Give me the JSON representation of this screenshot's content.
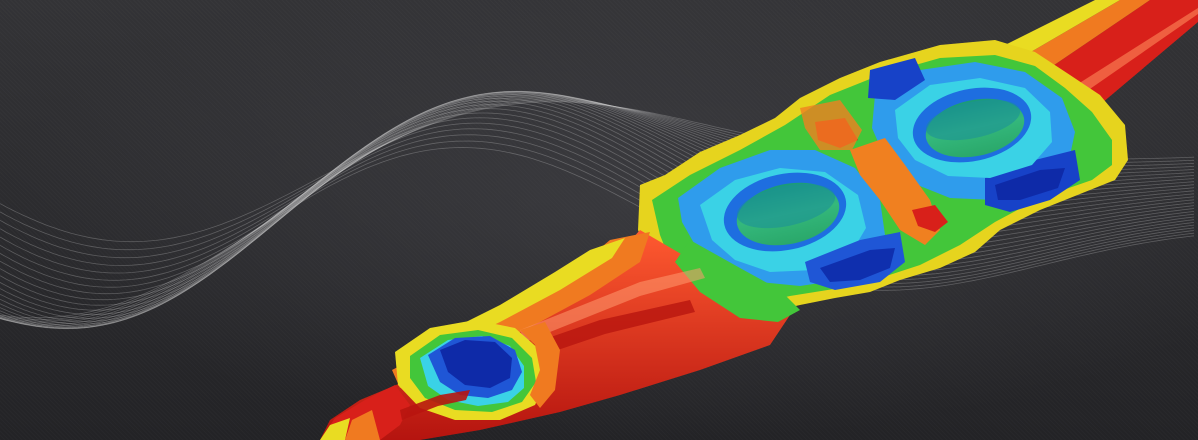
{
  "image": {
    "subject": "fea-stress-contour-bracket",
    "palette": {
      "background": "#2b2b2e",
      "wave_lines": "#d8d8d8",
      "red": "#e0201a",
      "orange": "#f27a1c",
      "yellow": "#e8e01e",
      "green": "#3fc93a",
      "cyan": "#34d6e6",
      "light_blue": "#2ea0f0",
      "blue": "#1f5fd8",
      "dark_blue": "#0d2fb0",
      "bore": "#2fb37a"
    }
  }
}
